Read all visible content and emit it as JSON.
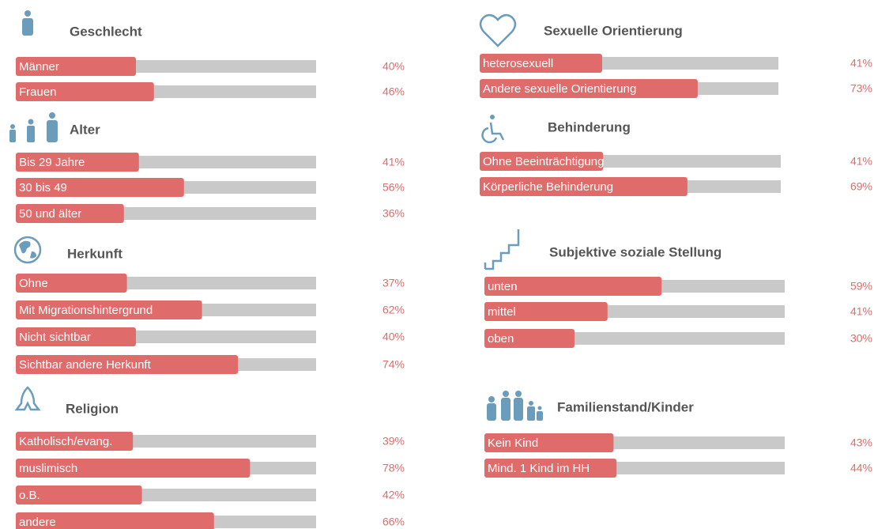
{
  "chart_data": [
    {
      "type": "bar",
      "orientation": "horizontal",
      "title": "Geschlecht",
      "categories": [
        "Männer",
        "Frauen"
      ],
      "values": [
        40,
        46
      ],
      "value_labels": [
        "40%",
        "46%"
      ],
      "xlim": [
        0,
        100
      ],
      "color": "#e06b6b",
      "track_color": "#c9c9c9"
    },
    {
      "type": "bar",
      "orientation": "horizontal",
      "title": "Alter",
      "categories": [
        "Bis 29 Jahre",
        "30 bis 49",
        "50 und älter"
      ],
      "values": [
        41,
        56,
        36
      ],
      "value_labels": [
        "41%",
        "56%",
        "36%"
      ],
      "xlim": [
        0,
        100
      ],
      "color": "#e06b6b",
      "track_color": "#c9c9c9"
    },
    {
      "type": "bar",
      "orientation": "horizontal",
      "title": "Herkunft",
      "categories": [
        "Ohne",
        "Mit Migrationshintergrund",
        "Nicht sichtbar",
        "Sichtbar andere Herkunft"
      ],
      "values": [
        37,
        62,
        40,
        74
      ],
      "value_labels": [
        "37%",
        "62%",
        "40%",
        "74%"
      ],
      "xlim": [
        0,
        100
      ],
      "color": "#e06b6b",
      "track_color": "#c9c9c9"
    },
    {
      "type": "bar",
      "orientation": "horizontal",
      "title": "Religion",
      "categories": [
        "Katholisch/evang.",
        "muslimisch",
        "o.B.",
        "andere"
      ],
      "values": [
        39,
        78,
        42,
        66
      ],
      "value_labels": [
        "39%",
        "78%",
        "42%",
        "66%"
      ],
      "xlim": [
        0,
        100
      ],
      "color": "#e06b6b",
      "track_color": "#c9c9c9"
    },
    {
      "type": "bar",
      "orientation": "horizontal",
      "title": "Sexuelle Orientierung",
      "categories": [
        "heterosexuell",
        "Andere sexuelle Orientierung"
      ],
      "values": [
        41,
        73
      ],
      "value_labels": [
        "41%",
        "73%"
      ],
      "xlim": [
        0,
        100
      ],
      "color": "#e06b6b",
      "track_color": "#c9c9c9"
    },
    {
      "type": "bar",
      "orientation": "horizontal",
      "title": "Behinderung",
      "categories": [
        "Ohne Beeinträchtigung",
        "Körperliche Behinderung"
      ],
      "values": [
        41,
        69
      ],
      "value_labels": [
        "41%",
        "69%"
      ],
      "xlim": [
        0,
        100
      ],
      "color": "#e06b6b",
      "track_color": "#c9c9c9"
    },
    {
      "type": "bar",
      "orientation": "horizontal",
      "title": "Subjektive soziale Stellung",
      "categories": [
        "unten",
        "mittel",
        "oben"
      ],
      "values": [
        59,
        41,
        30
      ],
      "value_labels": [
        "59%",
        "41%",
        "30%"
      ],
      "xlim": [
        0,
        100
      ],
      "color": "#e06b6b",
      "track_color": "#c9c9c9"
    },
    {
      "type": "bar",
      "orientation": "horizontal",
      "title": "Familienstand/Kinder",
      "categories": [
        "Kein Kind",
        "Mind. 1 Kind im HH"
      ],
      "values": [
        43,
        44
      ],
      "value_labels": [
        "43%",
        "44%"
      ],
      "xlim": [
        0,
        100
      ],
      "color": "#e06b6b",
      "track_color": "#c9c9c9"
    }
  ]
}
